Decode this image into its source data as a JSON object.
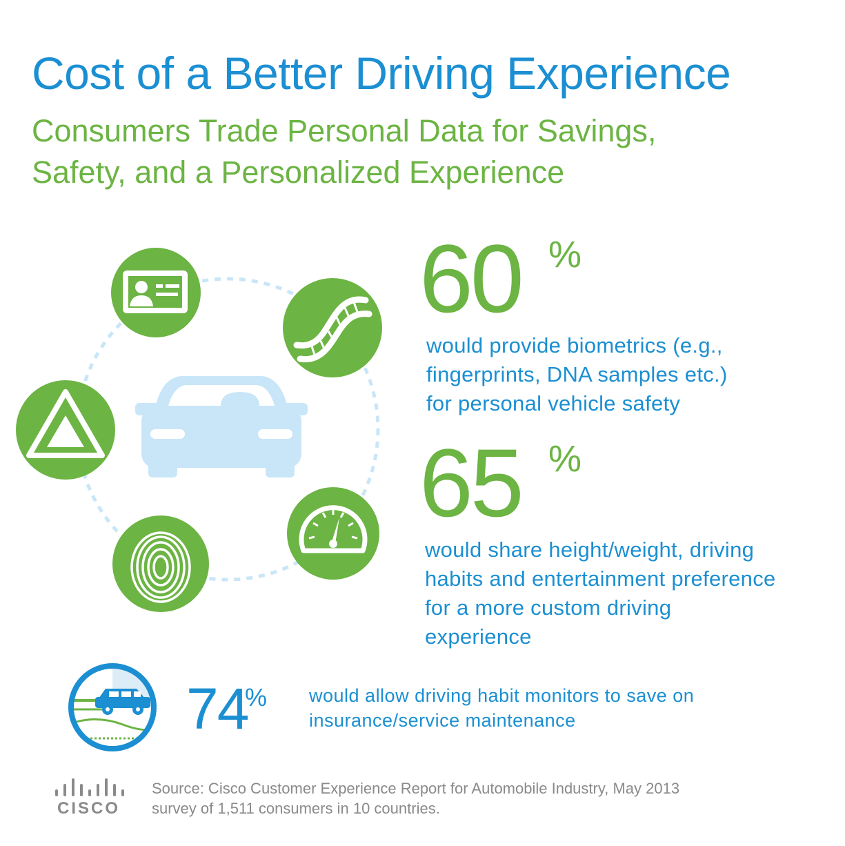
{
  "header": {
    "title": "Cost of a Better Driving Experience",
    "subtitle_line1": "Consumers Trade Personal Data for Savings,",
    "subtitle_line2": "Safety, and a Personalized Experience"
  },
  "stats": [
    {
      "value": "60",
      "unit": "%",
      "lines": [
        "would provide biometrics (e.g.,",
        "fingerprints, DNA samples etc.)",
        "for personal vehicle safety"
      ]
    },
    {
      "value": "65",
      "unit": "%",
      "lines": [
        "would share height/weight, driving",
        "habits and entertainment preference",
        "for a more custom driving",
        "experience"
      ]
    },
    {
      "value": "74",
      "unit": "%",
      "lines": [
        "would allow driving habit monitors to save on",
        "insurance/service maintenance"
      ]
    }
  ],
  "icons": [
    "id-card-icon",
    "dna-icon",
    "hazard-triangle-icon",
    "fingerprint-icon",
    "speedometer-icon",
    "car-icon",
    "car-monitor-icon",
    "cisco-logo"
  ],
  "footer": {
    "source_line1": "Source: Cisco Customer Experience Report for Automobile Industry, May 2013",
    "source_line2": "survey of 1,511 consumers in 10 countries.",
    "logo_text": "CISCO"
  },
  "colors": {
    "blue": "#1b8fd2",
    "green": "#6cb443",
    "light_blue": "#c9e6f8",
    "gray": "#8a8a8a"
  }
}
